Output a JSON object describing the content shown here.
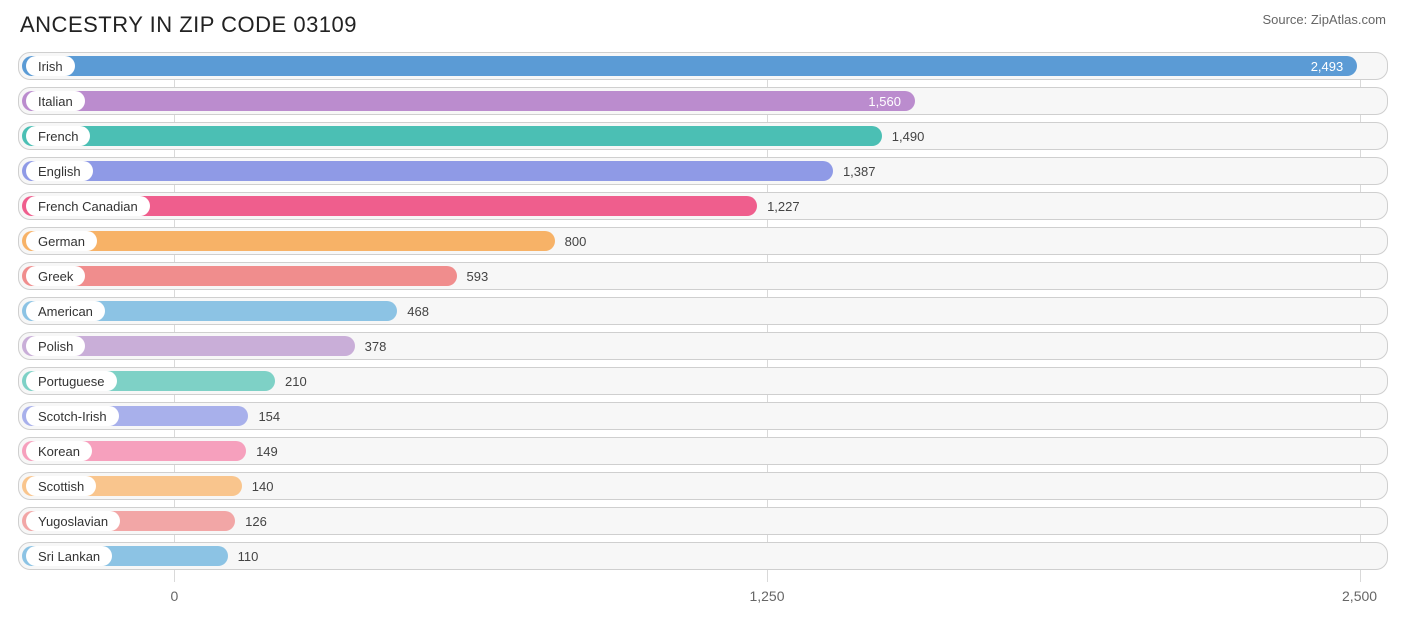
{
  "header": {
    "title": "ANCESTRY IN ZIP CODE 03109",
    "source": "Source: ZipAtlas.com"
  },
  "chart": {
    "type": "bar-horizontal",
    "background_color": "#ffffff",
    "track_bg": "#f7f7f7",
    "track_border": "#cfcfcf",
    "grid_color": "#d9d9d9",
    "label_fontsize": 13,
    "value_fontsize": 13,
    "axis_fontsize": 14,
    "x_min": -330,
    "x_max": 2560,
    "x_ticks": [
      {
        "pos": 0,
        "label": "0"
      },
      {
        "pos": 1250,
        "label": "1,250"
      },
      {
        "pos": 2500,
        "label": "2,500"
      }
    ],
    "bars": [
      {
        "label": "Irish",
        "value": 2493,
        "display": "2,493",
        "color": "#5b9bd5",
        "value_inside": true
      },
      {
        "label": "Italian",
        "value": 1560,
        "display": "1,560",
        "color": "#bb8cce",
        "value_inside": true
      },
      {
        "label": "French",
        "value": 1490,
        "display": "1,490",
        "color": "#4bbfb4",
        "value_inside": false
      },
      {
        "label": "English",
        "value": 1387,
        "display": "1,387",
        "color": "#8f9ae6",
        "value_inside": false
      },
      {
        "label": "French Canadian",
        "value": 1227,
        "display": "1,227",
        "color": "#ef5e8d",
        "value_inside": false
      },
      {
        "label": "German",
        "value": 800,
        "display": "800",
        "color": "#f7b267",
        "value_inside": false
      },
      {
        "label": "Greek",
        "value": 593,
        "display": "593",
        "color": "#f08d8d",
        "value_inside": false
      },
      {
        "label": "American",
        "value": 468,
        "display": "468",
        "color": "#8cc3e4",
        "value_inside": false
      },
      {
        "label": "Polish",
        "value": 378,
        "display": "378",
        "color": "#c9aed8",
        "value_inside": false
      },
      {
        "label": "Portuguese",
        "value": 210,
        "display": "210",
        "color": "#7ed1c6",
        "value_inside": false
      },
      {
        "label": "Scotch-Irish",
        "value": 154,
        "display": "154",
        "color": "#a8b0eb",
        "value_inside": false
      },
      {
        "label": "Korean",
        "value": 149,
        "display": "149",
        "color": "#f6a0bd",
        "value_inside": false
      },
      {
        "label": "Scottish",
        "value": 140,
        "display": "140",
        "color": "#f9c58d",
        "value_inside": false
      },
      {
        "label": "Yugoslavian",
        "value": 126,
        "display": "126",
        "color": "#f2a6a6",
        "value_inside": false
      },
      {
        "label": "Sri Lankan",
        "value": 110,
        "display": "110",
        "color": "#8cc3e4",
        "value_inside": false
      }
    ]
  }
}
